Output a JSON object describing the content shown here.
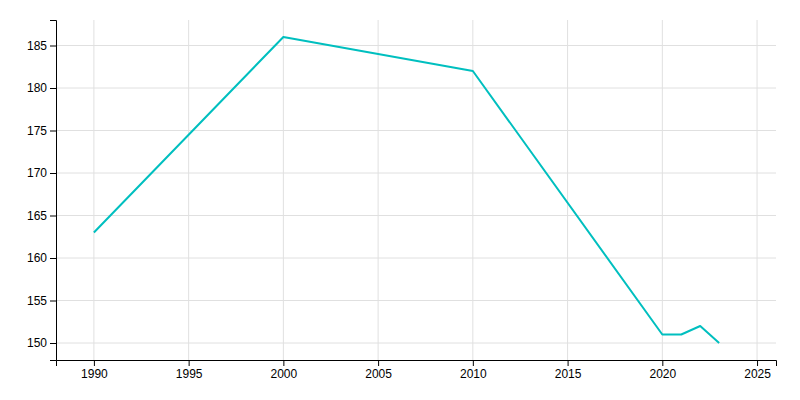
{
  "chart_data": {
    "type": "line",
    "x": [
      1990,
      2000,
      2010,
      2020,
      2021,
      2022,
      2023
    ],
    "values": [
      163,
      186,
      182,
      151,
      151,
      152,
      150
    ],
    "color": "#00BFBF",
    "xlim": [
      1988,
      2026
    ],
    "ylim": [
      148,
      188
    ],
    "xticks": [
      1990,
      1995,
      2000,
      2005,
      2010,
      2015,
      2020,
      2025
    ],
    "yticks": [
      150,
      155,
      160,
      165,
      170,
      175,
      180,
      185
    ],
    "grid": true
  }
}
